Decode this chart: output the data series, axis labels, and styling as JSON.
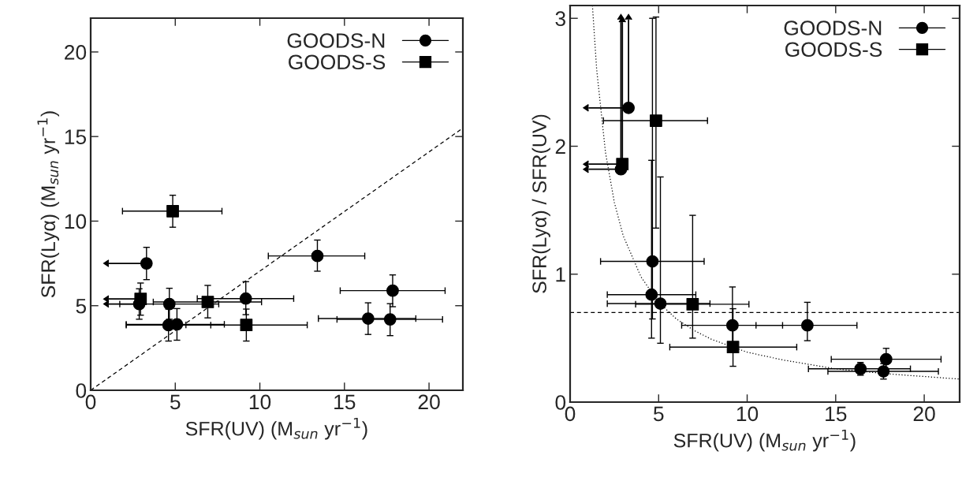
{
  "chart_data": [
    {
      "type": "scatter",
      "xlabel": "SFR(UV) (M$_{sun}$ yr$^{−1}$)",
      "ylabel": "SFR(Lyα) (M$_{sun}$ yr$^{−1}$)",
      "xlim": [
        0,
        22
      ],
      "ylim": [
        0,
        22
      ],
      "xticks": [
        0,
        5,
        10,
        15,
        20
      ],
      "yticks": [
        0,
        5,
        10,
        15,
        20
      ],
      "legend": "top right",
      "series": [
        {
          "name": "GOODS-N",
          "color": "#000000",
          "marker": "circle",
          "x": [
            3.3,
            2.87,
            4.65,
            4.6,
            5.1,
            9.17,
            13.4,
            17.85,
            16.4,
            17.7
          ],
          "values": [
            7.5,
            5.1,
            5.1,
            3.85,
            3.9,
            5.42,
            7.94,
            5.89,
            4.24,
            4.19
          ],
          "xerrors": [
            [
              1.07,
              3.3
            ],
            [
              1.07,
              2.87
            ],
            [
              1.72,
              7.57
            ],
            [
              2.1,
              7.1
            ],
            [
              2.1,
              7.9
            ],
            [
              6.3,
              12.0
            ],
            [
              10.5,
              16.2
            ],
            [
              14.75,
              20.95
            ],
            [
              13.46,
              19.22
            ],
            [
              14.56,
              20.8
            ]
          ],
          "errors": [
            [
              6.54,
              8.45
            ],
            [
              4.2,
              6.0
            ],
            [
              4.2,
              6.03
            ],
            [
              2.91,
              4.8
            ],
            [
              2.96,
              4.83
            ],
            [
              4.47,
              6.42
            ],
            [
              7.04,
              8.88
            ],
            [
              4.94,
              6.82
            ],
            [
              3.3,
              5.17
            ],
            [
              3.23,
              5.12
            ]
          ]
        },
        {
          "name": "GOODS-S",
          "color": "#000000",
          "marker": "square",
          "x": [
            2.95,
            4.85,
            6.92,
            9.2
          ],
          "values": [
            5.4,
            10.59,
            5.22,
            3.86
          ],
          "xerrors": [
            [
              1.07,
              2.95
            ],
            [
              1.88,
              7.76
            ],
            [
              3.7,
              10.1
            ],
            [
              5.63,
              12.8
            ]
          ],
          "errors": [
            [
              4.44,
              6.34
            ],
            [
              9.64,
              11.53
            ],
            [
              4.28,
              6.2
            ],
            [
              2.91,
              4.8
            ]
          ]
        },
        {
          "type": "line",
          "color": "#000000",
          "line_style": "dashed",
          "x": [
            0,
            22
          ],
          "values": [
            0,
            15.5
          ]
        }
      ]
    },
    {
      "type": "scatter",
      "xlabel": "SFR(UV) (M$_{sun}$ yr$^{−1}$)",
      "ylabel": "SFR(Lyα) / SFR(UV)",
      "xlim": [
        0,
        22
      ],
      "ylim": [
        0,
        3.1
      ],
      "xticks": [
        0,
        5,
        10,
        15,
        20
      ],
      "yticks": [
        0,
        1,
        2,
        3
      ],
      "legend": "top right",
      "ref_lines": [
        {
          "axis": "y",
          "value": 0.7,
          "line_style": "dashed",
          "color": "#000000"
        }
      ],
      "series": [
        {
          "name": "GOODS-N",
          "color": "#000000",
          "marker": "circle",
          "x": [
            3.3,
            2.87,
            4.65,
            4.6,
            5.1,
            9.17,
            13.4,
            17.85,
            16.4,
            17.7
          ],
          "values": [
            2.3,
            1.82,
            1.1,
            0.84,
            0.77,
            0.6,
            0.6,
            0.335,
            0.26,
            0.24
          ],
          "xerrors": [
            [
              1.04,
              3.3
            ],
            [
              1.04,
              2.87
            ],
            [
              1.72,
              7.57
            ],
            [
              2.1,
              7.1
            ],
            [
              2.1,
              7.9
            ],
            [
              6.3,
              12.0
            ],
            [
              10.5,
              16.2
            ],
            [
              14.75,
              20.95
            ],
            [
              13.46,
              19.22
            ],
            [
              14.56,
              20.8
            ]
          ],
          "errors": [
            [
              2.3,
              2.99
            ],
            [
              1.82,
              2.99
            ],
            [
              0.65,
              3.0
            ],
            [
              0.5,
              1.89
            ],
            [
              0.46,
              1.76
            ],
            [
              0.46,
              0.9
            ],
            [
              0.48,
              0.78
            ],
            [
              0.26,
              0.42
            ],
            [
              0.21,
              0.31
            ],
            [
              0.18,
              0.3
            ]
          ]
        },
        {
          "name": "GOODS-S",
          "color": "#000000",
          "marker": "square",
          "x": [
            2.95,
            4.85,
            6.92,
            9.2
          ],
          "values": [
            1.86,
            2.2,
            0.765,
            0.43
          ],
          "xerrors": [
            [
              1.04,
              2.95
            ],
            [
              1.88,
              7.76
            ],
            [
              3.7,
              10.1
            ],
            [
              5.63,
              12.8
            ]
          ],
          "errors": [
            [
              1.86,
              2.97
            ],
            [
              1.36,
              3.01
            ],
            [
              0.5,
              1.46
            ],
            [
              0.28,
              0.73
            ]
          ]
        },
        {
          "type": "line",
          "color": "#000000",
          "line_style": "dotted",
          "x": [
            1.26,
            1.5,
            2,
            2.5,
            3,
            4,
            5,
            6,
            7,
            8,
            10,
            12,
            15,
            18,
            22
          ],
          "values": [
            3.1,
            2.6,
            1.95,
            1.56,
            1.3,
            0.98,
            0.78,
            0.65,
            0.56,
            0.49,
            0.39,
            0.33,
            0.26,
            0.22,
            0.18
          ]
        }
      ]
    }
  ]
}
